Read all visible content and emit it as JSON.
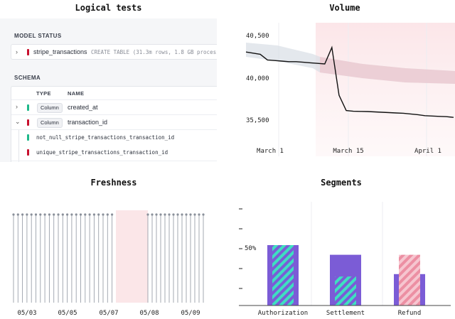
{
  "logical_tests": {
    "title": "Logical tests",
    "model_status_label": "MODEL STATUS",
    "model": {
      "name": "stripe_transactions",
      "detail": "CREATE TABLE (31.3m rows, 1.8 GB processe"
    },
    "schema_label": "SCHEMA",
    "columns_header": {
      "type": "TYPE",
      "name": "NAME"
    },
    "rows": [
      {
        "type": "Column",
        "name": "created_at",
        "status": "green",
        "expanded": false
      },
      {
        "type": "Column",
        "name": "transaction_id",
        "status": "red",
        "expanded": true
      }
    ],
    "tests": [
      {
        "name": "not_null_stripe_transactions_transaction_id",
        "status": "green"
      },
      {
        "name": "unique_stripe_transactions_transaction_id",
        "status": "red"
      }
    ]
  },
  "volume": {
    "title": "Volume",
    "y_ticks": [
      "40,500",
      "40,000",
      "35,500"
    ],
    "x_ticks": [
      "March 1",
      "March 15",
      "April 1"
    ]
  },
  "freshness": {
    "title": "Freshness",
    "x_ticks": [
      "05/03",
      "05/05",
      "05/07",
      "05/08",
      "05/09"
    ]
  },
  "segments": {
    "title": "Segments",
    "y_tick_label": "50%"
  },
  "chart_data": [
    {
      "type": "line",
      "title": "Volume",
      "y_ticks": [
        40500,
        40000,
        35500
      ],
      "x_ticks": [
        "March 1",
        "March 15",
        "April 1"
      ],
      "series": [
        {
          "values": [
            40260,
            40240,
            40220,
            40120,
            40110,
            40100,
            40090,
            40090,
            40080,
            40070,
            40060,
            40050,
            39800,
            37000,
            36100,
            36060,
            36050,
            36040,
            36020,
            36000,
            35980,
            35960,
            35940,
            35900,
            35860,
            35800,
            35780,
            35760,
            35740,
            35700
          ]
        }
      ],
      "grid": false
    },
    {
      "type": "scatter",
      "title": "Freshness",
      "x_ticks": [
        "05/03",
        "05/05",
        "05/07",
        "05/08",
        "05/09"
      ],
      "grid": true
    },
    {
      "type": "bar",
      "title": "Segments",
      "categories": [
        "Authorization",
        "Settlement",
        "Refund"
      ],
      "series": [
        {
          "values": [
            50,
            42,
            26
          ]
        },
        {
          "values": [
            50,
            24,
            42
          ]
        }
      ],
      "y_ticks": [
        "50%"
      ]
    }
  ]
}
